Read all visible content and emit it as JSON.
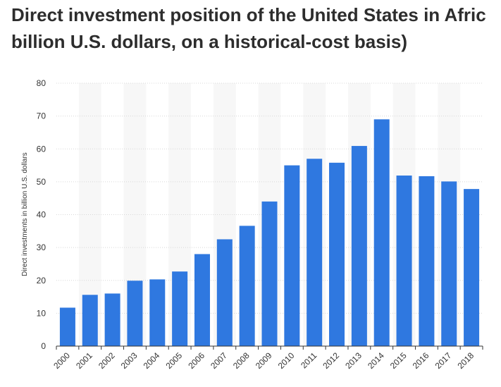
{
  "title_line1": "Direct investment position of the United States in Afric",
  "title_line2": "billion U.S. dollars, on a historical-cost basis)",
  "chart_data": {
    "type": "bar",
    "title": "Direct investment position of the United States in Afric billion U.S. dollars, on a historical-cost basis)",
    "xlabel": "",
    "ylabel": "Direct investments in billion U.S. dollars",
    "categories": [
      "2000",
      "2001",
      "2002",
      "2003",
      "2004",
      "2005",
      "2006",
      "2007",
      "2008",
      "2009",
      "2010",
      "2011",
      "2012",
      "2013",
      "2014",
      "2015",
      "2016",
      "2017",
      "2018"
    ],
    "values": [
      11.7,
      15.6,
      16.0,
      19.9,
      20.3,
      22.7,
      28.0,
      32.5,
      36.6,
      44.0,
      55.0,
      57.0,
      55.8,
      60.9,
      69.0,
      51.9,
      51.7,
      50.1,
      47.8
    ],
    "ylim": [
      0,
      80
    ],
    "yticks": [
      0,
      10,
      20,
      30,
      40,
      50,
      60,
      70,
      80
    ],
    "grid": true,
    "bar_color": "#2f78e0"
  }
}
